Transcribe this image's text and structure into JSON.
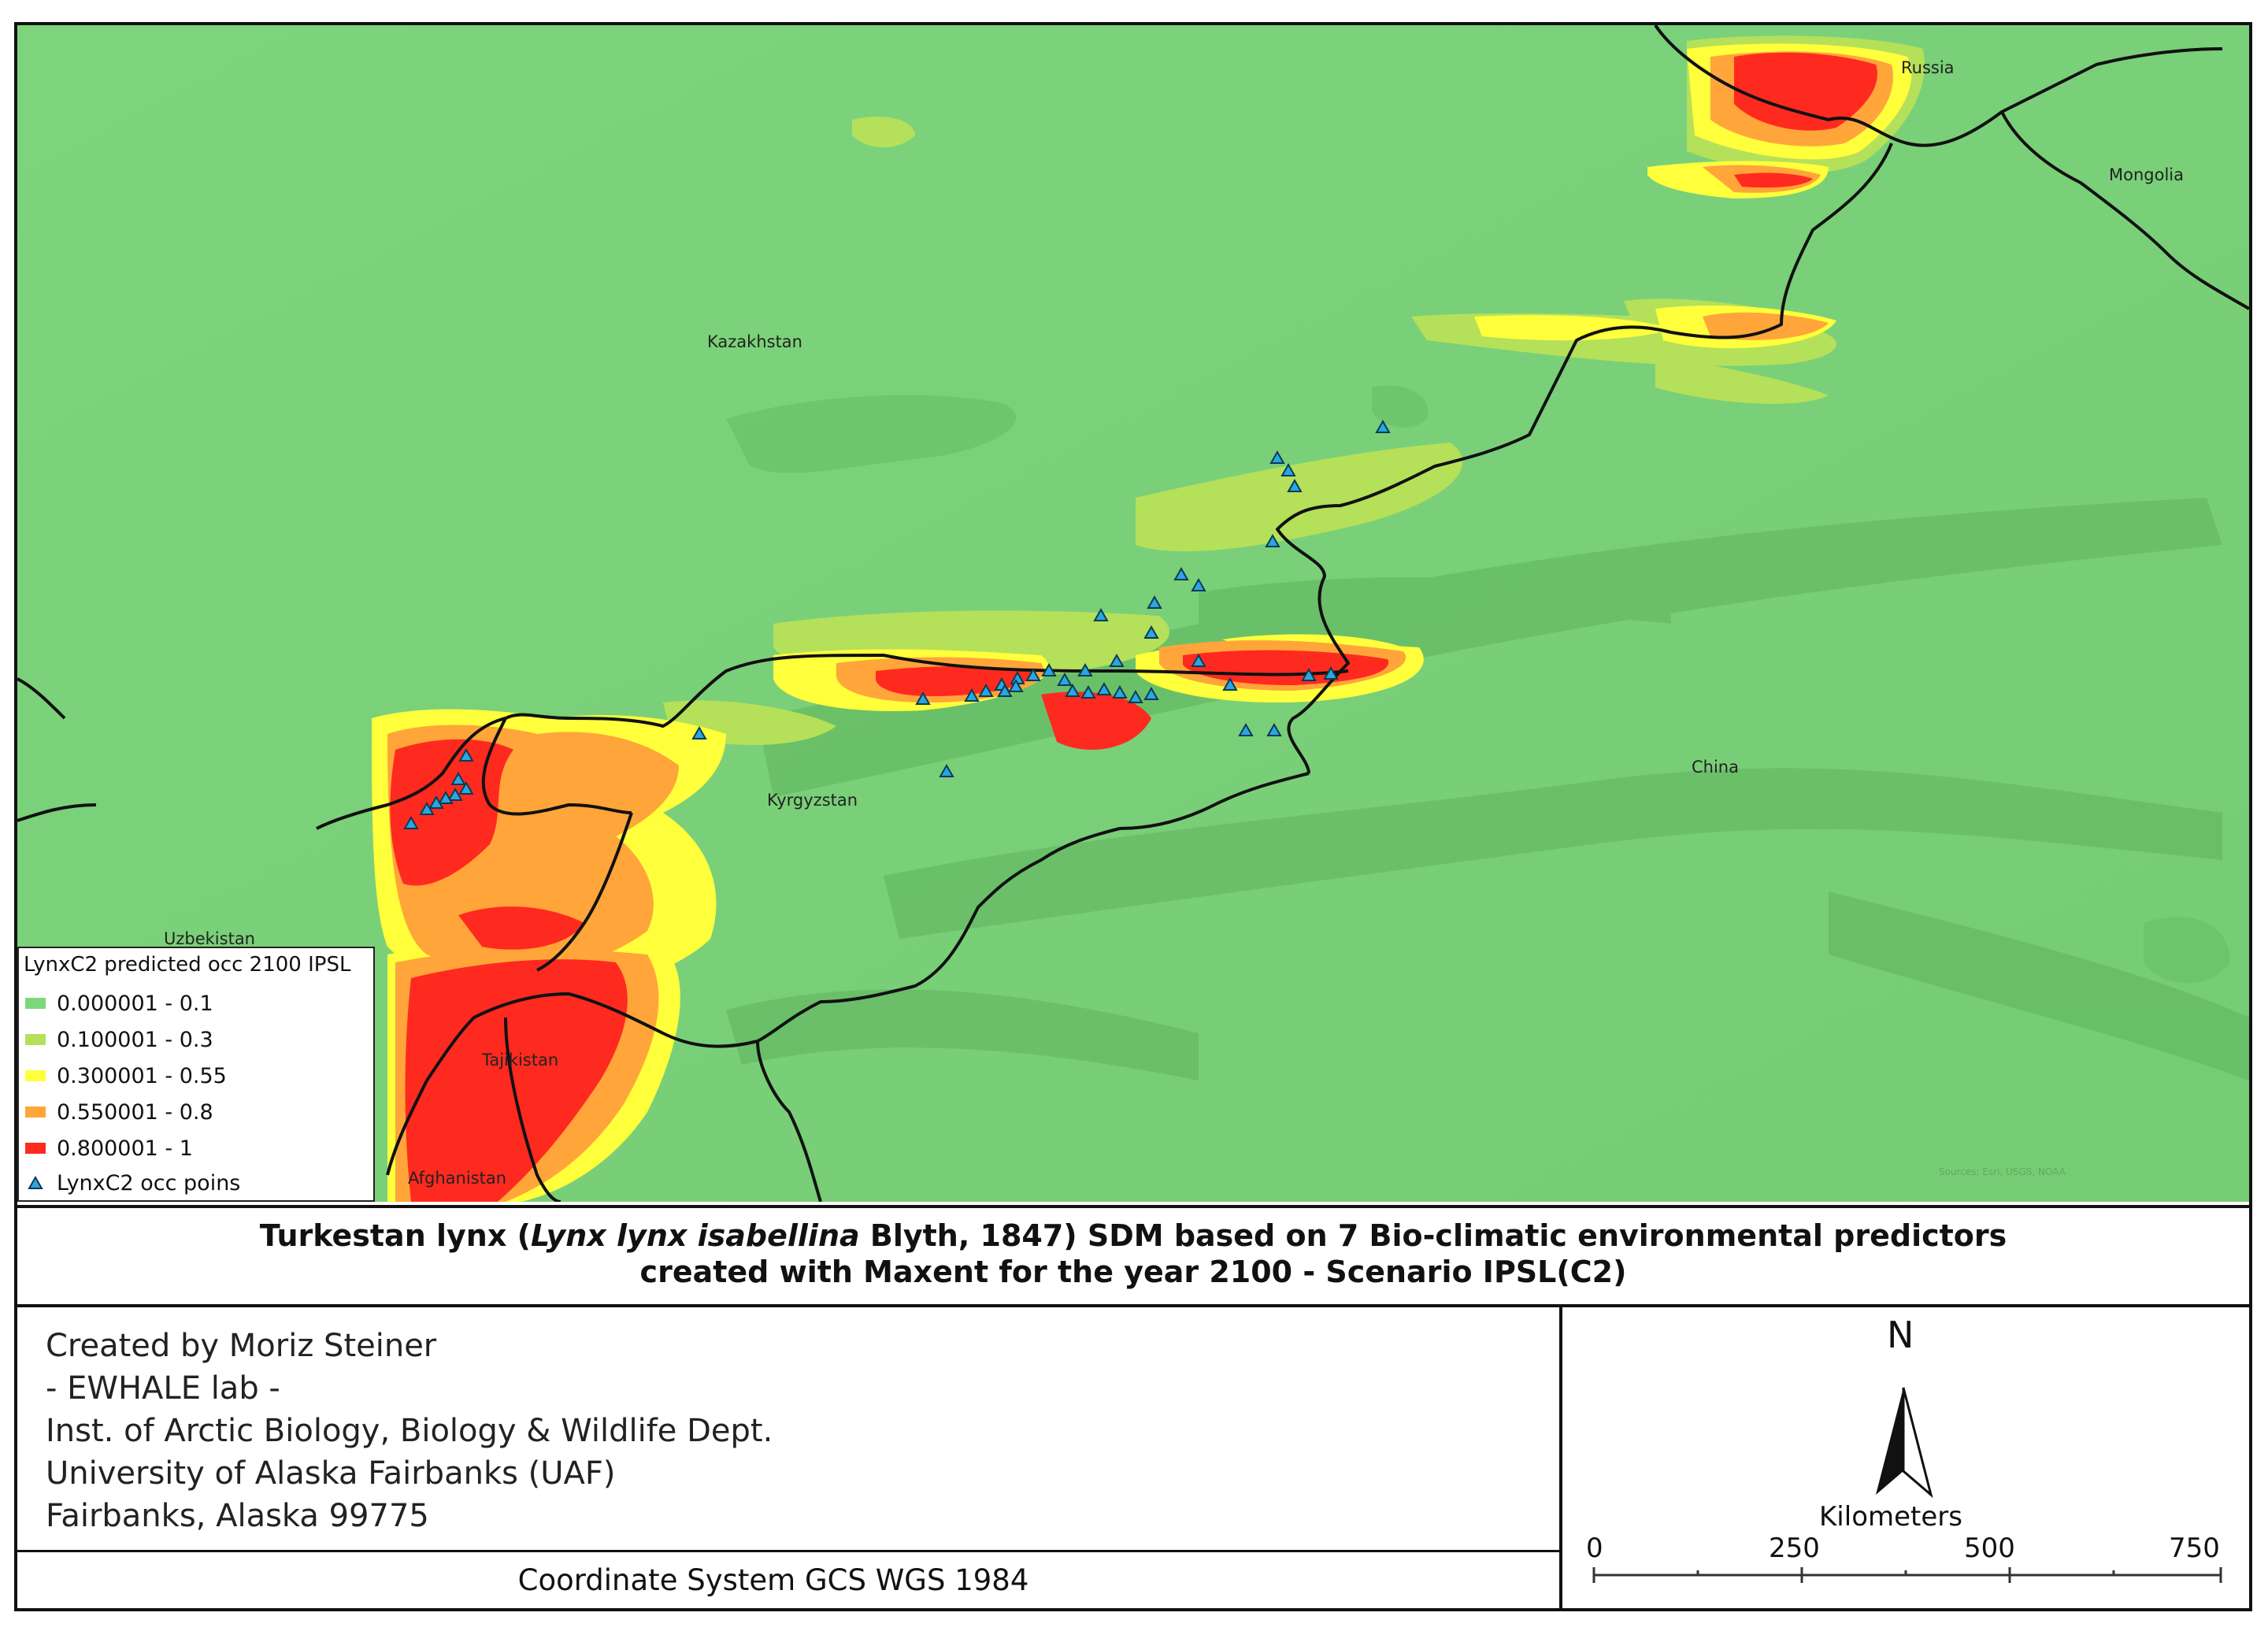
{
  "map": {
    "countries": {
      "russia": "Russia",
      "mongolia": "Mongolia",
      "kazakhstan": "Kazakhstan",
      "kyrgyzstan": "Kyrgyzstan",
      "china": "China",
      "uzbekistan": "Uzbekistan",
      "tajikistan": "Tajikistan",
      "afghanistan": "Afghanistan"
    },
    "attribution_faint": "Sources: Esri, USGS, NOAA"
  },
  "legend": {
    "title": "LynxC2 predicted occ 2100 IPSL",
    "classes": [
      {
        "label": "0.000001 - 0.1",
        "color": "#7dd87a"
      },
      {
        "label": "0.100001 - 0.3",
        "color": "#b5e05a"
      },
      {
        "label": "0.300001 - 0.55",
        "color": "#ffff3c"
      },
      {
        "label": "0.550001 - 0.8",
        "color": "#ffa53a"
      },
      {
        "label": "0.800001 - 1",
        "color": "#ff2a1f"
      }
    ],
    "points_label": "LynxC2 occ poins",
    "points_color": "#29a7e0"
  },
  "title": {
    "line1_prefix": "Turkestan lynx (",
    "line1_italic": "Lynx lynx isabellina",
    "line1_suffix": " Blyth, 1847) SDM based on 7 Bio-climatic environmental predictors",
    "line2": "created with Maxent for the year 2100 - Scenario IPSL(C2)"
  },
  "credits": [
    "Created by Moriz Steiner",
    "- EWHALE lab -",
    "Inst. of Arctic Biology,  Biology & Wildlife Dept.",
    "University of Alaska Fairbanks (UAF)",
    "Fairbanks, Alaska 99775"
  ],
  "coordinate_system": "Coordinate System GCS WGS 1984",
  "north_arrow": {
    "label": "N"
  },
  "scale_bar": {
    "title": "Kilometers",
    "ticks": [
      "0",
      "250",
      "500",
      "750"
    ]
  }
}
